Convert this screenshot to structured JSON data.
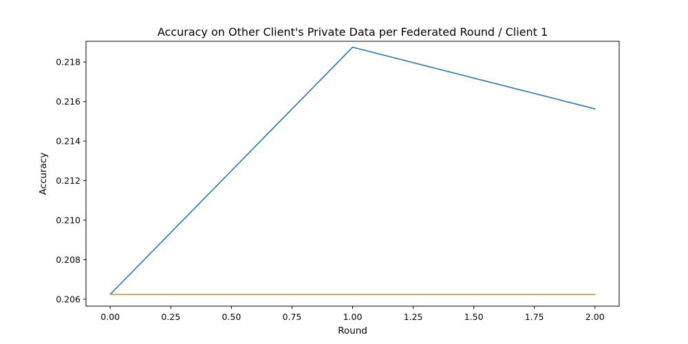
{
  "chart_data": {
    "type": "line",
    "title": "Accuracy on Other Client's Private Data per Federated Round / Client 1",
    "xlabel": "Round",
    "ylabel": "Accuracy",
    "xlim": [
      -0.1,
      2.1
    ],
    "ylim": [
      0.20565,
      0.21905
    ],
    "xticks": [
      0.0,
      0.25,
      0.5,
      0.75,
      1.0,
      1.25,
      1.5,
      1.75,
      2.0
    ],
    "xtick_labels": [
      "0.00",
      "0.25",
      "0.50",
      "0.75",
      "1.00",
      "1.25",
      "1.50",
      "1.75",
      "2.00"
    ],
    "yticks": [
      0.206,
      0.208,
      0.21,
      0.212,
      0.214,
      0.216,
      0.218
    ],
    "ytick_labels": [
      "0.206",
      "0.208",
      "0.210",
      "0.212",
      "0.214",
      "0.216",
      "0.218"
    ],
    "grid": false,
    "legend": false,
    "x": [
      0,
      1,
      2
    ],
    "series": [
      {
        "values": [
          0.20625,
          0.21875,
          0.21563
        ],
        "color": "#1f77b4"
      },
      {
        "values": [
          0.20625,
          0.20625,
          0.20625
        ],
        "color": "#ff7f0e"
      }
    ]
  }
}
